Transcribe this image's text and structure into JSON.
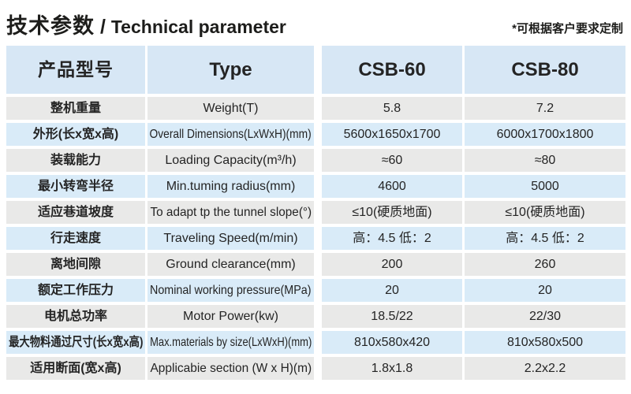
{
  "header": {
    "title_cn": "技术参数",
    "title_separator": " / ",
    "title_en": "Technical parameter",
    "note": "*可根据客户要求定制"
  },
  "table": {
    "headers": {
      "product_model": "产品型号",
      "type": "Type",
      "model_1": "CSB-60",
      "model_2": "CSB-80"
    },
    "rows": [
      {
        "cn": "整机重量",
        "en": "Weight(T)",
        "csb60": "5.8",
        "csb80": "7.2"
      },
      {
        "cn": "外形(长x宽x高)",
        "en": "Overall Dimensions(LxWxH)(mm)",
        "csb60": "5600x1650x1700",
        "csb80": "6000x1700x1800"
      },
      {
        "cn": "装载能力",
        "en": "Loading Capacity(m³/h)",
        "csb60": "≈60",
        "csb80": "≈80"
      },
      {
        "cn": "最小转弯半径",
        "en": "Min.tuming radius(mm)",
        "csb60": "4600",
        "csb80": "5000"
      },
      {
        "cn": "适应巷道坡度",
        "en": "To adapt tp the tunnel slope(°)",
        "csb60": "≤10(硬质地面)",
        "csb80": "≤10(硬质地面)"
      },
      {
        "cn": "行走速度",
        "en": "Traveling Speed(m/min)",
        "csb60": "高：4.5 低：2",
        "csb80": "高：4.5 低：2"
      },
      {
        "cn": "离地间隙",
        "en": "Ground clearance(mm)",
        "csb60": "200",
        "csb80": "260"
      },
      {
        "cn": "额定工作压力",
        "en": "Nominal working pressure(MPa)",
        "csb60": "20",
        "csb80": "20"
      },
      {
        "cn": "电机总功率",
        "en": "Motor Power(kw)",
        "csb60": "18.5/22",
        "csb80": "22/30"
      },
      {
        "cn": "最大物料通过尺寸(长x宽x高)",
        "en": "Max.materials by size(LxWxH)(mm)",
        "csb60": "810x580x420",
        "csb80": "810x580x500"
      },
      {
        "cn": "适用断面(宽x高)",
        "en": "Applicabie section (W x H)(m)",
        "csb60": "1.8x1.8",
        "csb80": "2.2x2.2"
      }
    ]
  },
  "colors": {
    "header_bg": "#d7e7f5",
    "row_blue": "#d9ebf8",
    "row_grey": "#e9e9e8",
    "text": "#1d1d1b"
  }
}
